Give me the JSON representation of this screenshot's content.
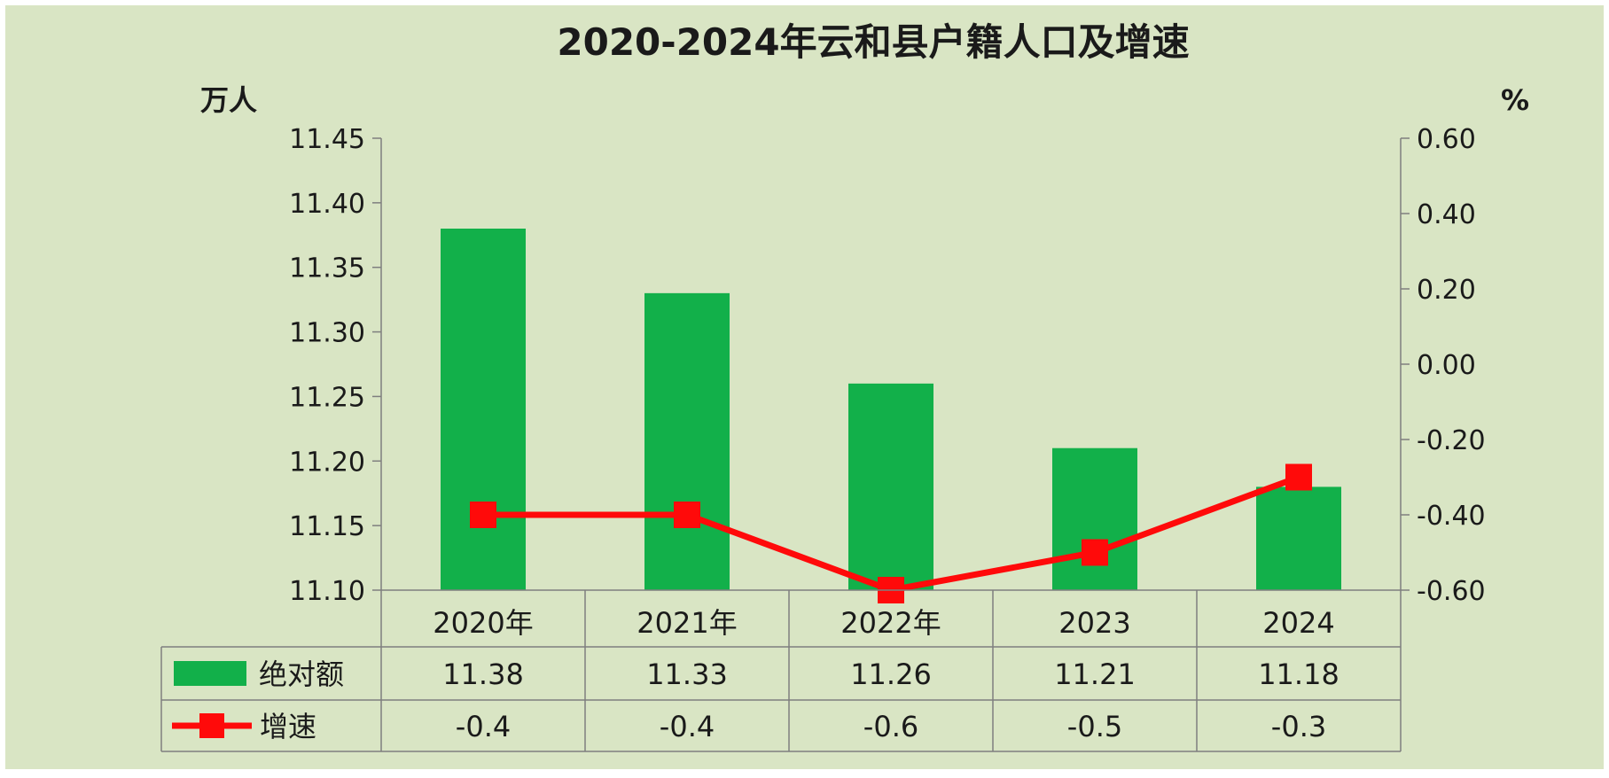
{
  "colors": {
    "background": "#d9e5c4",
    "bar": "#12b04a",
    "line": "#ff0a0a",
    "grid": "#7f7f7f",
    "text": "#1a1a1a"
  },
  "chart_data": {
    "type": "bar",
    "title": "2020-2024年云和县户籍人口及增速",
    "ylabel": "万人",
    "y2label": "%",
    "categories": [
      "2020年",
      "2021年",
      "2022年",
      "2023",
      "2024"
    ],
    "ylim": [
      11.1,
      11.45
    ],
    "y2lim": [
      -0.6,
      0.6
    ],
    "yticks": [
      "11.10",
      "11.15",
      "11.20",
      "11.25",
      "11.30",
      "11.35",
      "11.40",
      "11.45"
    ],
    "y2ticks": [
      "-0.60",
      "-0.40",
      "-0.20",
      "0.00",
      "0.20",
      "0.40",
      "0.60"
    ],
    "series": [
      {
        "name": "绝对额",
        "type": "bar",
        "axis": "left",
        "values": [
          11.38,
          11.33,
          11.26,
          11.21,
          11.18
        ],
        "labels": [
          "11.38",
          "11.33",
          "11.26",
          "11.21",
          "11.18"
        ]
      },
      {
        "name": "增速",
        "type": "line",
        "axis": "right",
        "marker": "square",
        "values": [
          -0.4,
          -0.4,
          -0.6,
          -0.5,
          -0.3
        ],
        "labels": [
          "-0.4",
          "-0.4",
          "-0.6",
          "-0.5",
          "-0.3"
        ]
      }
    ],
    "legend": "data-table",
    "grid": false
  }
}
